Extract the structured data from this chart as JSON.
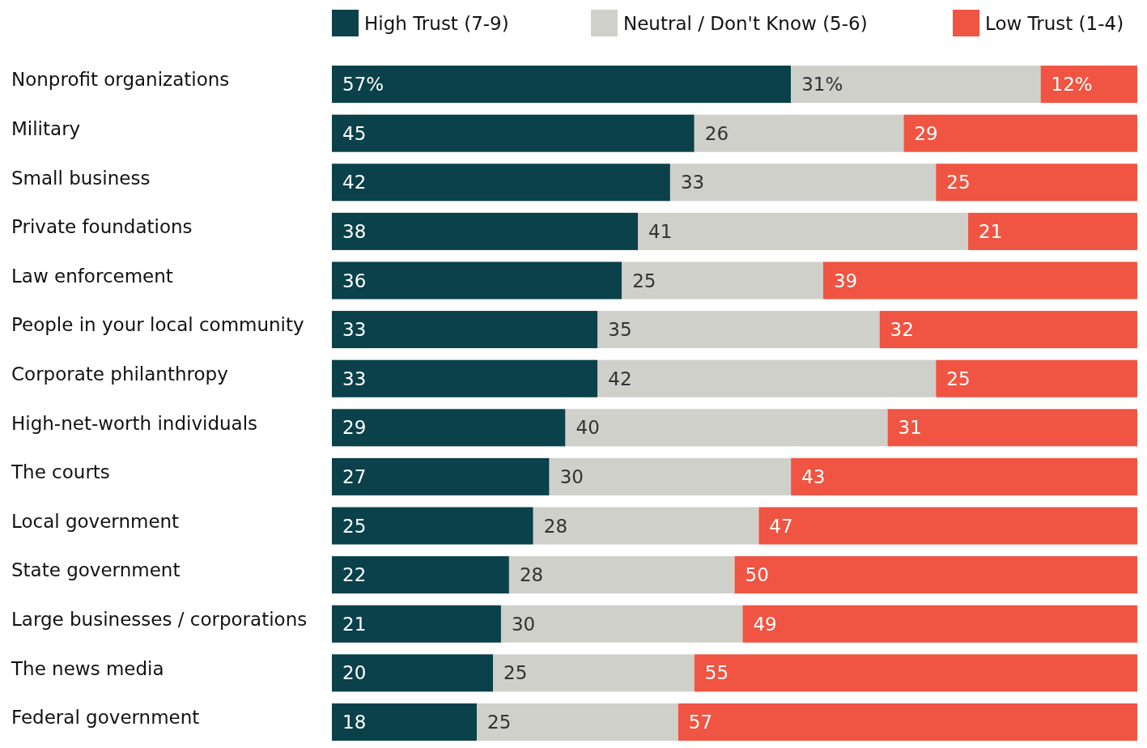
{
  "chart_data": {
    "type": "bar",
    "orientation": "horizontal",
    "stacked": true,
    "legend": "top",
    "tick_labels": "y",
    "xlim": [
      0,
      100
    ],
    "categories": [
      "Nonprofit organizations",
      "Military",
      "Small business",
      "Private foundations",
      "Law enforcement",
      "People in your local community",
      "Corporate philanthropy",
      "High-net-worth individuals",
      "The courts",
      "Local government",
      "State government",
      "Large businesses / corporations",
      "The news media",
      "Federal government"
    ],
    "series": [
      {
        "name": "High Trust (7-9)",
        "color": "#0a414a",
        "values": [
          57,
          45,
          42,
          38,
          36,
          33,
          33,
          29,
          27,
          25,
          22,
          21,
          20,
          18
        ],
        "value_labels": [
          "57%",
          "45",
          "42",
          "38",
          "36",
          "33",
          "33",
          "29",
          "27",
          "25",
          "22",
          "21",
          "20",
          "18"
        ]
      },
      {
        "name": "Neutral / Don't Know (5-6)",
        "color": "#d0d0cb",
        "values": [
          31,
          26,
          33,
          41,
          25,
          35,
          42,
          40,
          30,
          28,
          28,
          30,
          25,
          25
        ],
        "value_labels": [
          "31%",
          "26",
          "33",
          "41",
          "25",
          "35",
          "42",
          "40",
          "30",
          "28",
          "28",
          "30",
          "25",
          "25"
        ]
      },
      {
        "name": "Low Trust (1-4)",
        "color": "#f05442",
        "values": [
          12,
          29,
          25,
          21,
          39,
          32,
          25,
          31,
          43,
          47,
          50,
          49,
          55,
          57
        ],
        "value_labels": [
          "12%",
          "29",
          "25",
          "21",
          "39",
          "32",
          "25",
          "31",
          "43",
          "47",
          "50",
          "49",
          "55",
          "57"
        ]
      }
    ]
  }
}
